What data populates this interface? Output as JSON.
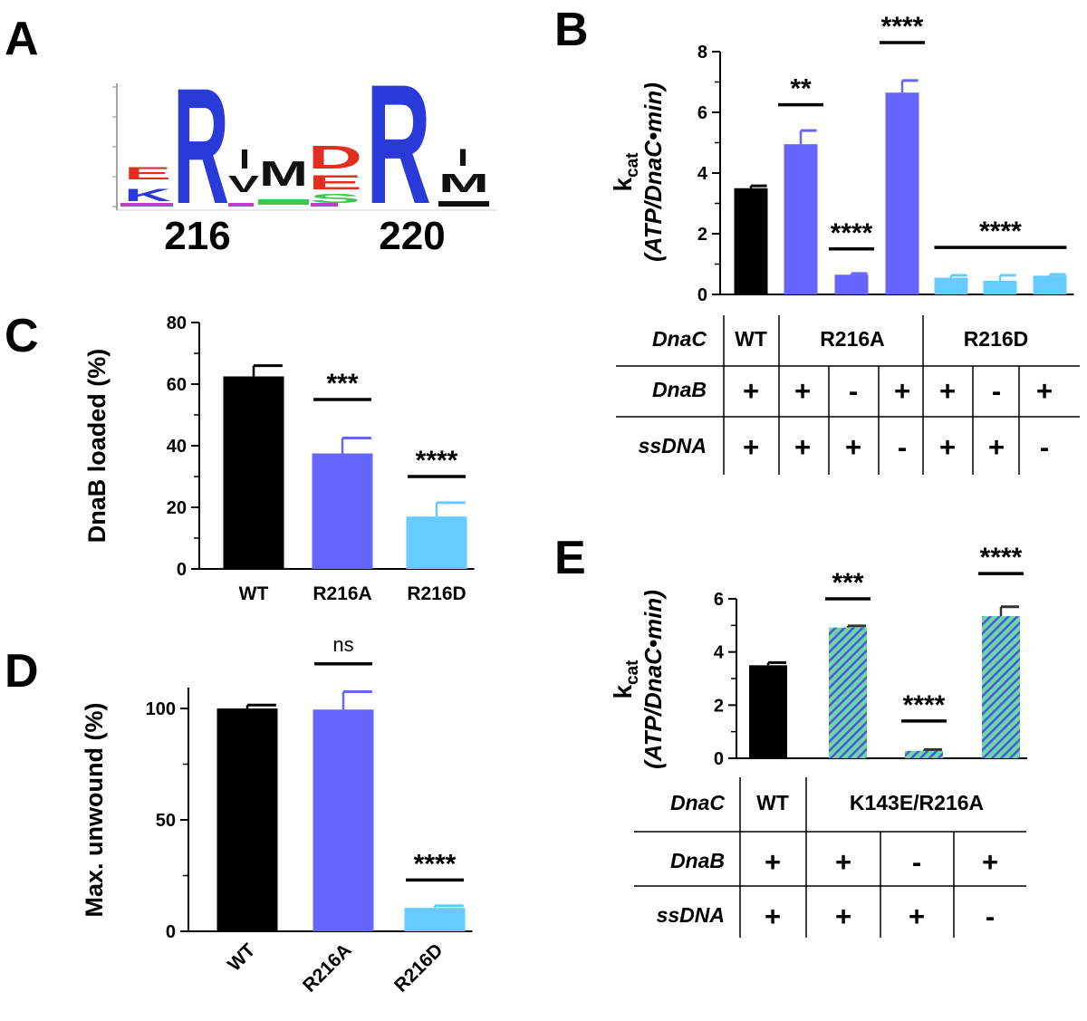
{
  "panels": {
    "A": "A",
    "B": "B",
    "C": "C",
    "D": "D",
    "E": "E"
  },
  "logo": {
    "position_labels": [
      "216",
      "220"
    ],
    "letters": [
      "E",
      "K",
      "R",
      "I",
      "V",
      "M",
      "D",
      "E",
      "S",
      "R",
      "I",
      "M"
    ],
    "colors": {
      "acidic": "#e03020",
      "basic": "#2a3ad8",
      "hydrophobic": "#111111",
      "polar": "#3cc850",
      "other": "#c040c0"
    }
  },
  "colors": {
    "WT": "#000000",
    "R216A": "#6666ff",
    "R216D": "#66ccff",
    "double_fill": "#6fd8a2",
    "double_stripe": "#4a5ae0"
  },
  "chart_data": [
    {
      "id": "B",
      "type": "bar",
      "categories": [
        "WT",
        "R216A",
        "R216A",
        "R216A",
        "R216D",
        "R216D",
        "R216D"
      ],
      "values": [
        3.5,
        4.95,
        0.65,
        6.65,
        0.55,
        0.45,
        0.62
      ],
      "errors": [
        0.08,
        0.45,
        0.04,
        0.4,
        0.08,
        0.18,
        0.04
      ],
      "ylabel_k": "k",
      "ylabel_k_sub": "cat",
      "ylabel_units": "(ATP/DnaC•min)",
      "ylim": [
        0,
        8
      ],
      "yticks": [
        0,
        2,
        4,
        6,
        8
      ],
      "significance": [
        {
          "label": "**",
          "bars": [
            1,
            1
          ],
          "y": 6.25
        },
        {
          "label": "****",
          "bars": [
            2,
            2
          ],
          "y": 1.5
        },
        {
          "label": "****",
          "bars": [
            3,
            3
          ],
          "y": 8.3
        },
        {
          "label": "****",
          "bars": [
            4,
            6
          ],
          "y": 1.55
        }
      ],
      "table": {
        "rows": [
          {
            "name": "DnaC",
            "cells": [
              "WT",
              "R216A",
              "R216D"
            ],
            "spans": [
              1,
              3,
              3
            ]
          },
          {
            "name": "DnaB",
            "cells": [
              "+",
              "+",
              "-",
              "+",
              "+",
              "-",
              "+"
            ]
          },
          {
            "name": "ssDNA",
            "cells": [
              "+",
              "+",
              "+",
              "-",
              "+",
              "+",
              "-"
            ]
          }
        ]
      }
    },
    {
      "id": "C",
      "type": "bar",
      "categories": [
        "WT",
        "R216A",
        "R216D"
      ],
      "values": [
        62.5,
        37.5,
        17
      ],
      "errors": [
        3.5,
        5,
        4.5
      ],
      "ylabel": "DnaB loaded (%)",
      "ylim": [
        0,
        80
      ],
      "yticks": [
        0,
        20,
        40,
        60,
        80
      ],
      "significance": [
        {
          "label": "***",
          "bars": [
            1,
            1
          ],
          "y": 55
        },
        {
          "label": "****",
          "bars": [
            2,
            2
          ],
          "y": 30
        }
      ]
    },
    {
      "id": "D",
      "type": "bar",
      "categories": [
        "WT",
        "R216A",
        "R216D"
      ],
      "values": [
        100,
        99.5,
        10.5
      ],
      "errors": [
        1.5,
        8,
        1
      ],
      "ylabel": "Max. unwound (%)",
      "ylim": [
        0,
        110
      ],
      "yticks": [
        0,
        50,
        100
      ],
      "significance": [
        {
          "label": "ns",
          "bars": [
            1,
            1
          ],
          "y": 120
        },
        {
          "label": "****",
          "bars": [
            2,
            2
          ],
          "y": 23
        }
      ]
    },
    {
      "id": "E",
      "type": "bar",
      "categories": [
        "WT",
        "K143E/R216A",
        "K143E/R216A",
        "K143E/R216A"
      ],
      "values": [
        3.5,
        4.92,
        0.28,
        5.35
      ],
      "errors": [
        0.1,
        0.06,
        0.05,
        0.35
      ],
      "ylabel_k": "k",
      "ylabel_k_sub": "cat",
      "ylabel_units": "(ATP/DnaC•min)",
      "ylim": [
        0,
        6
      ],
      "yticks": [
        0,
        2,
        4,
        6
      ],
      "significance": [
        {
          "label": "***",
          "bars": [
            1,
            1
          ],
          "y": 6.0
        },
        {
          "label": "****",
          "bars": [
            2,
            2
          ],
          "y": 1.4
        },
        {
          "label": "****",
          "bars": [
            3,
            3
          ],
          "y": 6.95
        }
      ],
      "table": {
        "rows": [
          {
            "name": "DnaC",
            "cells": [
              "WT",
              "K143E/R216A"
            ],
            "spans": [
              1,
              3
            ]
          },
          {
            "name": "DnaB",
            "cells": [
              "+",
              "+",
              "-",
              "+"
            ]
          },
          {
            "name": "ssDNA",
            "cells": [
              "+",
              "+",
              "+",
              "-"
            ]
          }
        ]
      }
    }
  ]
}
